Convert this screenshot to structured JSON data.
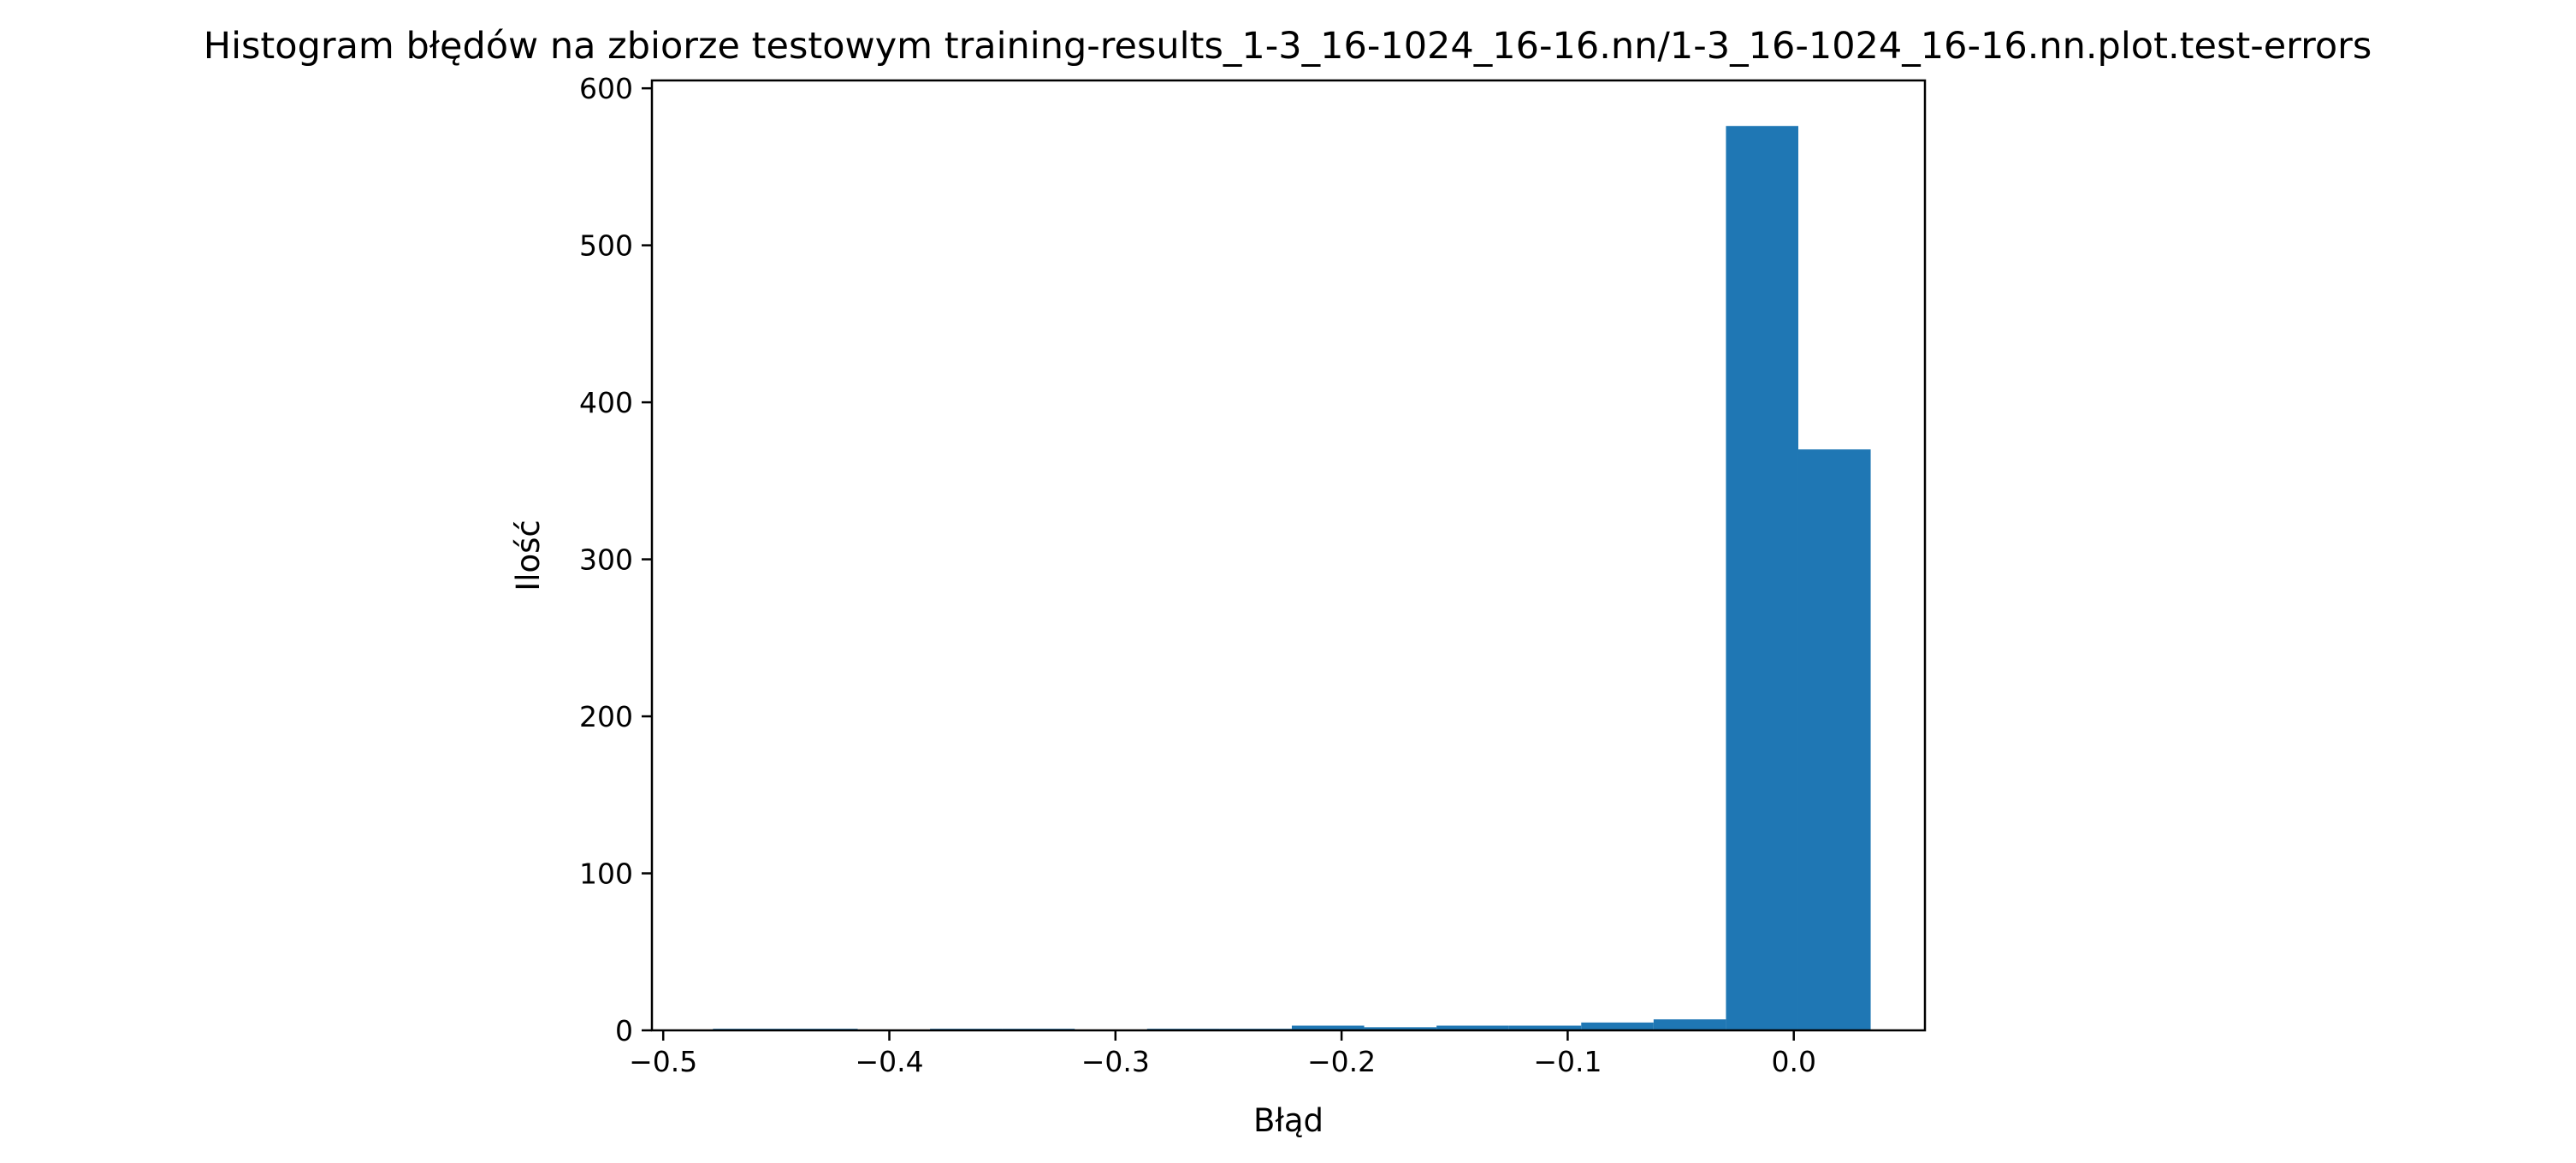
{
  "chart_data": {
    "type": "bar",
    "title": "Histogram błędów na zbiorze testowym training-results_1-3_16-1024_16-16.nn/1-3_16-1024_16-16.nn.plot.test-errors",
    "xlabel": "Błąd",
    "ylabel": "Ilość",
    "xlim": [
      -0.505,
      0.058
    ],
    "ylim": [
      0,
      605
    ],
    "grid": false,
    "legend": "none",
    "color": "#1f77b4",
    "bin_width": 0.032,
    "bins": [
      {
        "x0": -0.478,
        "x1": -0.446,
        "count": 1
      },
      {
        "x0": -0.446,
        "x1": -0.414,
        "count": 1
      },
      {
        "x0": -0.414,
        "x1": -0.382,
        "count": 0
      },
      {
        "x0": -0.382,
        "x1": -0.35,
        "count": 1
      },
      {
        "x0": -0.35,
        "x1": -0.318,
        "count": 1
      },
      {
        "x0": -0.318,
        "x1": -0.286,
        "count": 0
      },
      {
        "x0": -0.286,
        "x1": -0.254,
        "count": 1
      },
      {
        "x0": -0.254,
        "x1": -0.222,
        "count": 1
      },
      {
        "x0": -0.222,
        "x1": -0.19,
        "count": 3
      },
      {
        "x0": -0.19,
        "x1": -0.158,
        "count": 2
      },
      {
        "x0": -0.158,
        "x1": -0.126,
        "count": 3
      },
      {
        "x0": -0.126,
        "x1": -0.094,
        "count": 3
      },
      {
        "x0": -0.094,
        "x1": -0.062,
        "count": 5
      },
      {
        "x0": -0.062,
        "x1": -0.03,
        "count": 7
      },
      {
        "x0": -0.03,
        "x1": 0.002,
        "count": 576
      },
      {
        "x0": 0.002,
        "x1": 0.034,
        "count": 370
      }
    ],
    "x_ticks": [
      {
        "value": -0.5,
        "label": "−0.5"
      },
      {
        "value": -0.4,
        "label": "−0.4"
      },
      {
        "value": -0.3,
        "label": "−0.3"
      },
      {
        "value": -0.2,
        "label": "−0.2"
      },
      {
        "value": -0.1,
        "label": "−0.1"
      },
      {
        "value": 0.0,
        "label": "0.0"
      }
    ],
    "y_ticks": [
      {
        "value": 0,
        "label": "0"
      },
      {
        "value": 100,
        "label": "100"
      },
      {
        "value": 200,
        "label": "200"
      },
      {
        "value": 300,
        "label": "300"
      },
      {
        "value": 400,
        "label": "400"
      },
      {
        "value": 500,
        "label": "500"
      },
      {
        "value": 600,
        "label": "600"
      }
    ]
  }
}
